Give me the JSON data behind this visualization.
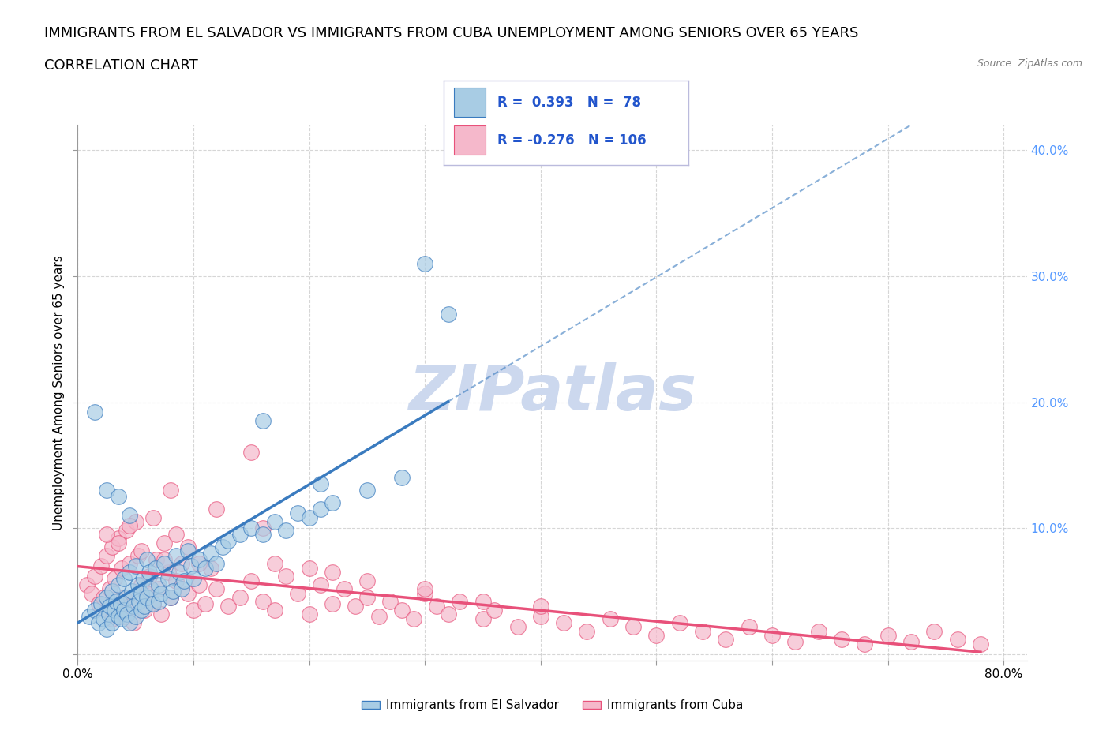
{
  "title_line1": "IMMIGRANTS FROM EL SALVADOR VS IMMIGRANTS FROM CUBA UNEMPLOYMENT AMONG SENIORS OVER 65 YEARS",
  "title_line2": "CORRELATION CHART",
  "source_text": "Source: ZipAtlas.com",
  "ylabel": "Unemployment Among Seniors over 65 years",
  "xlim": [
    0.0,
    0.82
  ],
  "ylim": [
    -0.005,
    0.42
  ],
  "xticks": [
    0.0,
    0.1,
    0.2,
    0.3,
    0.4,
    0.5,
    0.6,
    0.7,
    0.8
  ],
  "yticks": [
    0.0,
    0.1,
    0.2,
    0.3,
    0.4
  ],
  "R_salvador": 0.393,
  "N_salvador": 78,
  "R_cuba": -0.276,
  "N_cuba": 106,
  "color_salvador": "#a8cce4",
  "color_cuba": "#f5b8cb",
  "color_salvador_line": "#3a7bbf",
  "color_cuba_line": "#e8517a",
  "legend_label_salvador": "Immigrants from El Salvador",
  "legend_label_cuba": "Immigrants from Cuba",
  "watermark_text": "ZIPatlas",
  "background_color": "#ffffff",
  "grid_color": "#cccccc",
  "title_fontsize": 13,
  "axis_label_fontsize": 11,
  "tick_fontsize": 11,
  "legend_fontsize": 13,
  "watermark_color": "#ccd8ee",
  "salvador_x": [
    0.01,
    0.015,
    0.018,
    0.02,
    0.022,
    0.025,
    0.025,
    0.027,
    0.028,
    0.03,
    0.03,
    0.032,
    0.033,
    0.035,
    0.035,
    0.037,
    0.038,
    0.04,
    0.04,
    0.042,
    0.043,
    0.045,
    0.045,
    0.047,
    0.048,
    0.05,
    0.05,
    0.052,
    0.053,
    0.055,
    0.055,
    0.057,
    0.058,
    0.06,
    0.06,
    0.062,
    0.063,
    0.065,
    0.067,
    0.07,
    0.07,
    0.072,
    0.075,
    0.078,
    0.08,
    0.082,
    0.085,
    0.088,
    0.09,
    0.092,
    0.095,
    0.098,
    0.1,
    0.105,
    0.11,
    0.115,
    0.12,
    0.125,
    0.13,
    0.14,
    0.15,
    0.16,
    0.17,
    0.18,
    0.19,
    0.2,
    0.21,
    0.22,
    0.25,
    0.28,
    0.16,
    0.21,
    0.3,
    0.32,
    0.015,
    0.025,
    0.035,
    0.045
  ],
  "salvador_y": [
    0.03,
    0.035,
    0.025,
    0.04,
    0.028,
    0.02,
    0.045,
    0.032,
    0.038,
    0.025,
    0.05,
    0.035,
    0.042,
    0.03,
    0.055,
    0.04,
    0.028,
    0.035,
    0.06,
    0.045,
    0.032,
    0.025,
    0.065,
    0.05,
    0.038,
    0.03,
    0.07,
    0.055,
    0.042,
    0.035,
    0.048,
    0.06,
    0.038,
    0.045,
    0.075,
    0.065,
    0.052,
    0.04,
    0.068,
    0.055,
    0.042,
    0.048,
    0.072,
    0.06,
    0.045,
    0.05,
    0.078,
    0.065,
    0.052,
    0.058,
    0.082,
    0.07,
    0.06,
    0.075,
    0.068,
    0.08,
    0.072,
    0.085,
    0.09,
    0.095,
    0.1,
    0.095,
    0.105,
    0.098,
    0.112,
    0.108,
    0.115,
    0.12,
    0.13,
    0.14,
    0.185,
    0.135,
    0.31,
    0.27,
    0.192,
    0.13,
    0.125,
    0.11
  ],
  "cuba_x": [
    0.008,
    0.012,
    0.015,
    0.018,
    0.02,
    0.022,
    0.025,
    0.025,
    0.028,
    0.03,
    0.03,
    0.032,
    0.035,
    0.035,
    0.038,
    0.04,
    0.04,
    0.042,
    0.045,
    0.045,
    0.048,
    0.05,
    0.052,
    0.055,
    0.058,
    0.06,
    0.062,
    0.065,
    0.068,
    0.07,
    0.072,
    0.075,
    0.078,
    0.08,
    0.085,
    0.09,
    0.095,
    0.1,
    0.105,
    0.11,
    0.115,
    0.12,
    0.13,
    0.14,
    0.15,
    0.16,
    0.17,
    0.18,
    0.19,
    0.2,
    0.21,
    0.22,
    0.23,
    0.24,
    0.25,
    0.26,
    0.27,
    0.28,
    0.29,
    0.3,
    0.31,
    0.32,
    0.33,
    0.35,
    0.36,
    0.38,
    0.4,
    0.42,
    0.44,
    0.46,
    0.48,
    0.5,
    0.52,
    0.54,
    0.56,
    0.58,
    0.6,
    0.62,
    0.64,
    0.66,
    0.68,
    0.7,
    0.72,
    0.74,
    0.76,
    0.78,
    0.025,
    0.035,
    0.045,
    0.055,
    0.065,
    0.075,
    0.085,
    0.095,
    0.105,
    0.15,
    0.2,
    0.25,
    0.3,
    0.35,
    0.4,
    0.16,
    0.12,
    0.08,
    0.17,
    0.22
  ],
  "cuba_y": [
    0.055,
    0.048,
    0.062,
    0.04,
    0.07,
    0.045,
    0.035,
    0.078,
    0.052,
    0.028,
    0.085,
    0.06,
    0.04,
    0.092,
    0.068,
    0.045,
    0.03,
    0.098,
    0.072,
    0.038,
    0.025,
    0.105,
    0.078,
    0.055,
    0.035,
    0.048,
    0.062,
    0.04,
    0.075,
    0.052,
    0.032,
    0.088,
    0.065,
    0.045,
    0.058,
    0.072,
    0.048,
    0.035,
    0.055,
    0.04,
    0.068,
    0.052,
    0.038,
    0.045,
    0.058,
    0.042,
    0.035,
    0.062,
    0.048,
    0.032,
    0.055,
    0.04,
    0.052,
    0.038,
    0.045,
    0.03,
    0.042,
    0.035,
    0.028,
    0.048,
    0.038,
    0.032,
    0.042,
    0.028,
    0.035,
    0.022,
    0.03,
    0.025,
    0.018,
    0.028,
    0.022,
    0.015,
    0.025,
    0.018,
    0.012,
    0.022,
    0.015,
    0.01,
    0.018,
    0.012,
    0.008,
    0.015,
    0.01,
    0.018,
    0.012,
    0.008,
    0.095,
    0.088,
    0.102,
    0.082,
    0.108,
    0.075,
    0.095,
    0.085,
    0.072,
    0.16,
    0.068,
    0.058,
    0.052,
    0.042,
    0.038,
    0.1,
    0.115,
    0.13,
    0.072,
    0.065
  ]
}
